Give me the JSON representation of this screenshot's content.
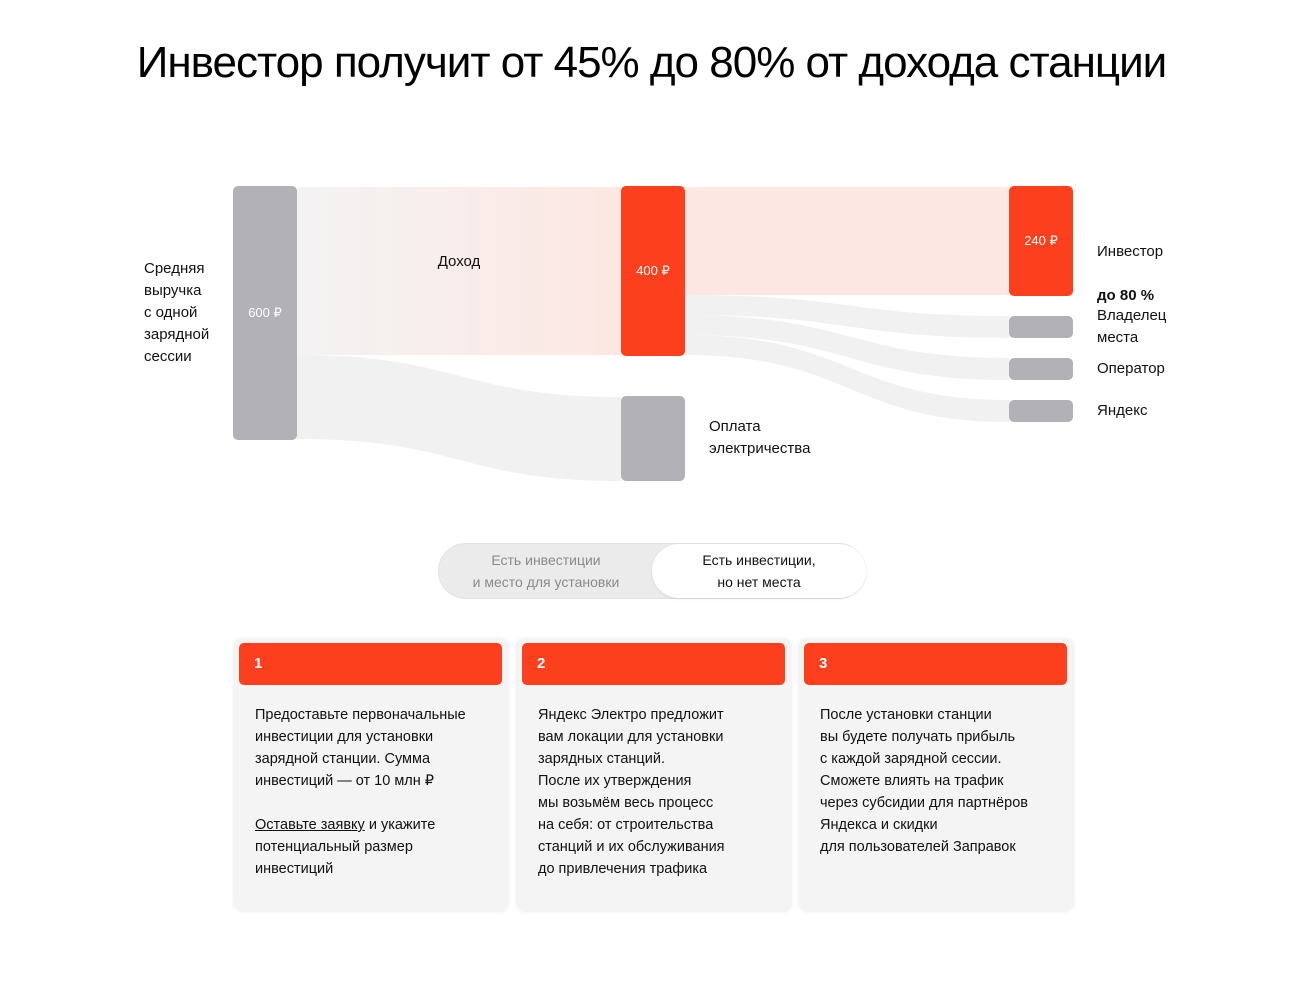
{
  "title": "Инвестор получит от 45% до 80% от дохода станции",
  "diagram": {
    "source_label": "Средняя\nвыручка\nс одной\nзарядной\nсессии",
    "source_value": "600 ₽",
    "income_label": "Доход",
    "income_value": "400 ₽",
    "electricity_label": "Оплата\nэлектричества",
    "investor_value": "240 ₽",
    "investor_label": "Инвестор",
    "investor_share": "до 80 %",
    "owner_label": "Владелец\nместа",
    "operator_label": "Оператор",
    "yandex_label": "Яндекс",
    "colors": {
      "accent": "#fc3f1d",
      "gray_node": "#b1b1b6",
      "flow": "#f1f1f1"
    }
  },
  "toggle": {
    "option_1": "Есть инвестиции\nи место для установки",
    "option_2": "Есть инвестиции,\nно нет места",
    "selected": "option_2"
  },
  "steps": [
    {
      "number": "1",
      "text": "Предоставьте первоначальные\nинвестиции для установки\nзарядной станции. Сумма\nинвестиций — от 10 млн ₽",
      "link": "Оставьте заявку",
      "text_after": " и укажите\nпотенциальный размер\nинвестиций"
    },
    {
      "number": "2",
      "text": "Яндекс Электро предложит\nвам локации для установки\nзарядных станций.\nПосле их утверждения\nмы возьмём весь процесс\nна себя: от строительства\nстанций и их обслуживания\nдо привлечения трафика"
    },
    {
      "number": "3",
      "text": "После установки станции\nвы будете получать прибыль\nс каждой зарядной сессии.\nСможете влиять на трафик\nчерез субсидии для партнёров\nЯндекса и скидки\nдля пользователей Заправок"
    }
  ]
}
